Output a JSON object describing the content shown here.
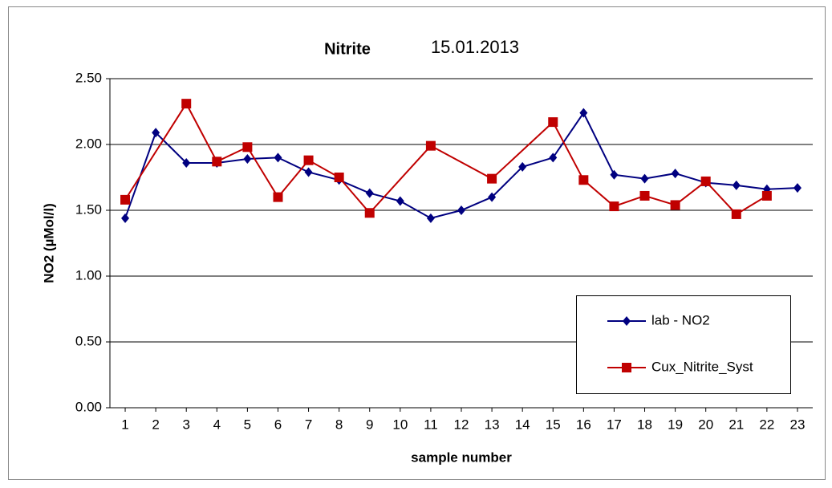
{
  "chart_data": {
    "type": "line",
    "title": "Nitrite",
    "subtitle": "15.01.2013",
    "x_label": "sample number",
    "y_label": "NO2 (µMol/l)",
    "xlim": [
      0.5,
      23.5
    ],
    "xticks": [
      1,
      2,
      3,
      4,
      5,
      6,
      7,
      8,
      9,
      10,
      11,
      12,
      13,
      14,
      15,
      16,
      17,
      18,
      19,
      20,
      21,
      22,
      23
    ],
    "ylim": [
      0,
      2.5
    ],
    "yticks": [
      {
        "value": 0,
        "label": "0.00"
      },
      {
        "value": 0.5,
        "label": "0.50"
      },
      {
        "value": 1,
        "label": "1.00"
      },
      {
        "value": 1.5,
        "label": "1.50"
      },
      {
        "value": 2,
        "label": "2.00"
      },
      {
        "value": 2.5,
        "label": "2.50"
      }
    ],
    "grid": true,
    "legend": "center right",
    "series": [
      {
        "name": "lab - NO2",
        "color": "#000080",
        "marker": "diamond",
        "x": [
          1,
          2,
          3,
          4,
          5,
          6,
          7,
          8,
          9,
          10,
          11,
          12,
          13,
          14,
          15,
          16,
          17,
          18,
          19,
          20,
          21,
          22,
          23
        ],
        "values": [
          1.44,
          2.09,
          1.86,
          1.86,
          1.89,
          1.9,
          1.79,
          1.73,
          1.63,
          1.57,
          1.44,
          1.5,
          1.6,
          1.83,
          1.9,
          2.24,
          1.77,
          1.74,
          1.78,
          1.71,
          1.69,
          1.66,
          1.67
        ]
      },
      {
        "name": "Cux_Nitrite_Syst",
        "color": "#c00000",
        "marker": "square",
        "x": [
          1,
          3,
          4,
          5,
          6,
          7,
          8,
          9,
          11,
          13,
          15,
          16,
          17,
          18,
          19,
          20,
          21,
          22
        ],
        "values": [
          1.58,
          2.31,
          1.87,
          1.98,
          1.6,
          1.88,
          1.75,
          1.48,
          1.99,
          1.74,
          2.17,
          1.73,
          1.53,
          1.61,
          1.54,
          1.72,
          1.47,
          1.61
        ]
      }
    ]
  }
}
